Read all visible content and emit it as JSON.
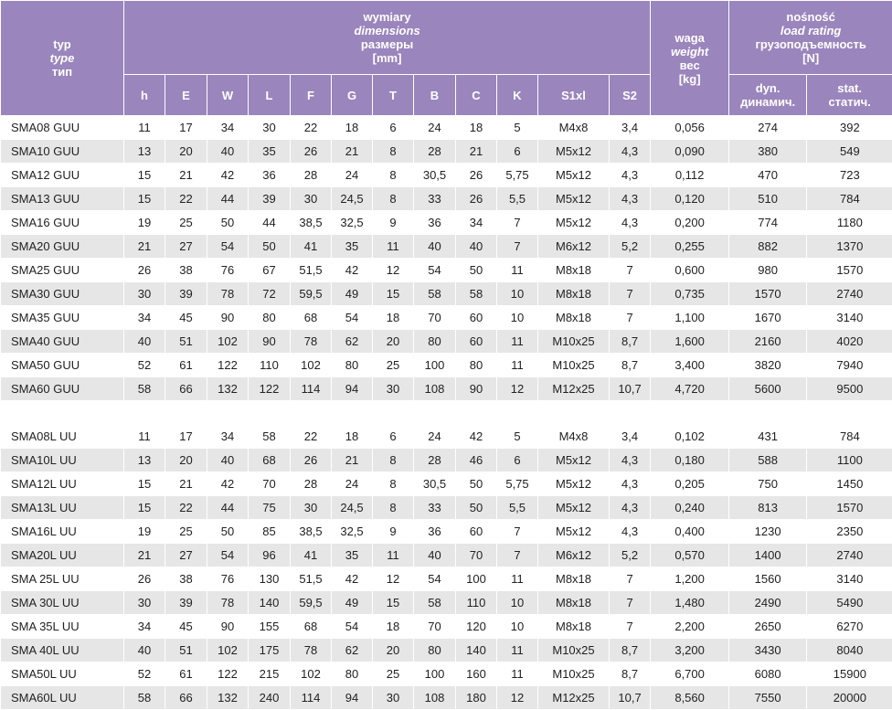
{
  "header": {
    "typ": [
      "typ",
      "type",
      "тип"
    ],
    "dimensions": [
      "wymiary",
      "dimensions",
      "размеры",
      "[mm]"
    ],
    "weight": [
      "waga",
      "weight",
      "вес",
      "[kg]"
    ],
    "load": [
      "nośność",
      "load rating",
      "грузоподъемность",
      "[N]"
    ],
    "columns": [
      "h",
      "E",
      "W",
      "L",
      "F",
      "G",
      "T",
      "B",
      "C",
      "K",
      "S1xl",
      "S2"
    ],
    "load_cols": [
      [
        "dyn.",
        "динамич."
      ],
      [
        "stat.",
        "статич."
      ]
    ]
  },
  "groups": [
    {
      "rows": [
        [
          "SMA08 GUU",
          "11",
          "17",
          "34",
          "30",
          "22",
          "18",
          "6",
          "24",
          "18",
          "5",
          "M4x8",
          "3,4",
          "0,056",
          "274",
          "392"
        ],
        [
          "SMA10 GUU",
          "13",
          "20",
          "40",
          "35",
          "26",
          "21",
          "8",
          "28",
          "21",
          "6",
          "M5x12",
          "4,3",
          "0,090",
          "380",
          "549"
        ],
        [
          "SMA12 GUU",
          "15",
          "21",
          "42",
          "36",
          "28",
          "24",
          "8",
          "30,5",
          "26",
          "5,75",
          "M5x12",
          "4,3",
          "0,112",
          "470",
          "723"
        ],
        [
          "SMA13 GUU",
          "15",
          "22",
          "44",
          "39",
          "30",
          "24,5",
          "8",
          "33",
          "26",
          "5,5",
          "M5x12",
          "4,3",
          "0,120",
          "510",
          "784"
        ],
        [
          "SMA16 GUU",
          "19",
          "25",
          "50",
          "44",
          "38,5",
          "32,5",
          "9",
          "36",
          "34",
          "7",
          "M5x12",
          "4,3",
          "0,200",
          "774",
          "1180"
        ],
        [
          "SMA20 GUU",
          "21",
          "27",
          "54",
          "50",
          "41",
          "35",
          "11",
          "40",
          "40",
          "7",
          "M6x12",
          "5,2",
          "0,255",
          "882",
          "1370"
        ],
        [
          "SMA25 GUU",
          "26",
          "38",
          "76",
          "67",
          "51,5",
          "42",
          "12",
          "54",
          "50",
          "11",
          "M8x18",
          "7",
          "0,600",
          "980",
          "1570"
        ],
        [
          "SMA30 GUU",
          "30",
          "39",
          "78",
          "72",
          "59,5",
          "49",
          "15",
          "58",
          "58",
          "10",
          "M8x18",
          "7",
          "0,735",
          "1570",
          "2740"
        ],
        [
          "SMA35 GUU",
          "34",
          "45",
          "90",
          "80",
          "68",
          "54",
          "18",
          "70",
          "60",
          "10",
          "M8x18",
          "7",
          "1,100",
          "1670",
          "3140"
        ],
        [
          "SMA40 GUU",
          "40",
          "51",
          "102",
          "90",
          "78",
          "62",
          "20",
          "80",
          "60",
          "11",
          "M10x25",
          "8,7",
          "1,600",
          "2160",
          "4020"
        ],
        [
          "SMA50 GUU",
          "52",
          "61",
          "122",
          "110",
          "102",
          "80",
          "25",
          "100",
          "80",
          "11",
          "M10x25",
          "8,7",
          "3,400",
          "3820",
          "7940"
        ],
        [
          "SMA60 GUU",
          "58",
          "66",
          "132",
          "122",
          "114",
          "94",
          "30",
          "108",
          "90",
          "12",
          "M12x25",
          "10,7",
          "4,720",
          "5600",
          "9500"
        ]
      ]
    },
    {
      "rows": [
        [
          "SMA08L UU",
          "11",
          "17",
          "34",
          "58",
          "22",
          "18",
          "6",
          "24",
          "42",
          "5",
          "M4x8",
          "3,4",
          "0,102",
          "431",
          "784"
        ],
        [
          "SMA10L UU",
          "13",
          "20",
          "40",
          "68",
          "26",
          "21",
          "8",
          "28",
          "46",
          "6",
          "M5x12",
          "4,3",
          "0,180",
          "588",
          "1100"
        ],
        [
          "SMA12L UU",
          "15",
          "21",
          "42",
          "70",
          "28",
          "24",
          "8",
          "30,5",
          "50",
          "5,75",
          "M5x12",
          "4,3",
          "0,205",
          "750",
          "1450"
        ],
        [
          "SMA13L UU",
          "15",
          "22",
          "44",
          "75",
          "30",
          "24,5",
          "8",
          "33",
          "50",
          "5,5",
          "M5x12",
          "4,3",
          "0,240",
          "813",
          "1570"
        ],
        [
          "SMA16L UU",
          "19",
          "25",
          "50",
          "85",
          "38,5",
          "32,5",
          "9",
          "36",
          "60",
          "7",
          "M5x12",
          "4,3",
          "0,400",
          "1230",
          "2350"
        ],
        [
          "SMA20L UU",
          "21",
          "27",
          "54",
          "96",
          "41",
          "35",
          "11",
          "40",
          "70",
          "7",
          "M6x12",
          "5,2",
          "0,570",
          "1400",
          "2740"
        ],
        [
          "SMA 25L UU",
          "26",
          "38",
          "76",
          "130",
          "51,5",
          "42",
          "12",
          "54",
          "100",
          "11",
          "M8x18",
          "7",
          "1,200",
          "1560",
          "3140"
        ],
        [
          "SMA 30L UU",
          "30",
          "39",
          "78",
          "140",
          "59,5",
          "49",
          "15",
          "58",
          "110",
          "10",
          "M8x18",
          "7",
          "1,480",
          "2490",
          "5490"
        ],
        [
          "SMA 35L UU",
          "34",
          "45",
          "90",
          "155",
          "68",
          "54",
          "18",
          "70",
          "120",
          "10",
          "M8x18",
          "7",
          "2,200",
          "2650",
          "6270"
        ],
        [
          "SMA 40L UU",
          "40",
          "51",
          "102",
          "175",
          "78",
          "62",
          "20",
          "80",
          "140",
          "11",
          "M10x25",
          "8,7",
          "3,200",
          "3430",
          "8040"
        ],
        [
          "SMA50L UU",
          "52",
          "61",
          "122",
          "215",
          "102",
          "80",
          "25",
          "100",
          "160",
          "11",
          "M10x25",
          "8,7",
          "6,700",
          "6080",
          "15900"
        ],
        [
          "SMA60L UU",
          "58",
          "66",
          "132",
          "240",
          "114",
          "94",
          "30",
          "108",
          "180",
          "12",
          "M12x25",
          "10,7",
          "8,560",
          "7550",
          "20000"
        ]
      ]
    }
  ]
}
